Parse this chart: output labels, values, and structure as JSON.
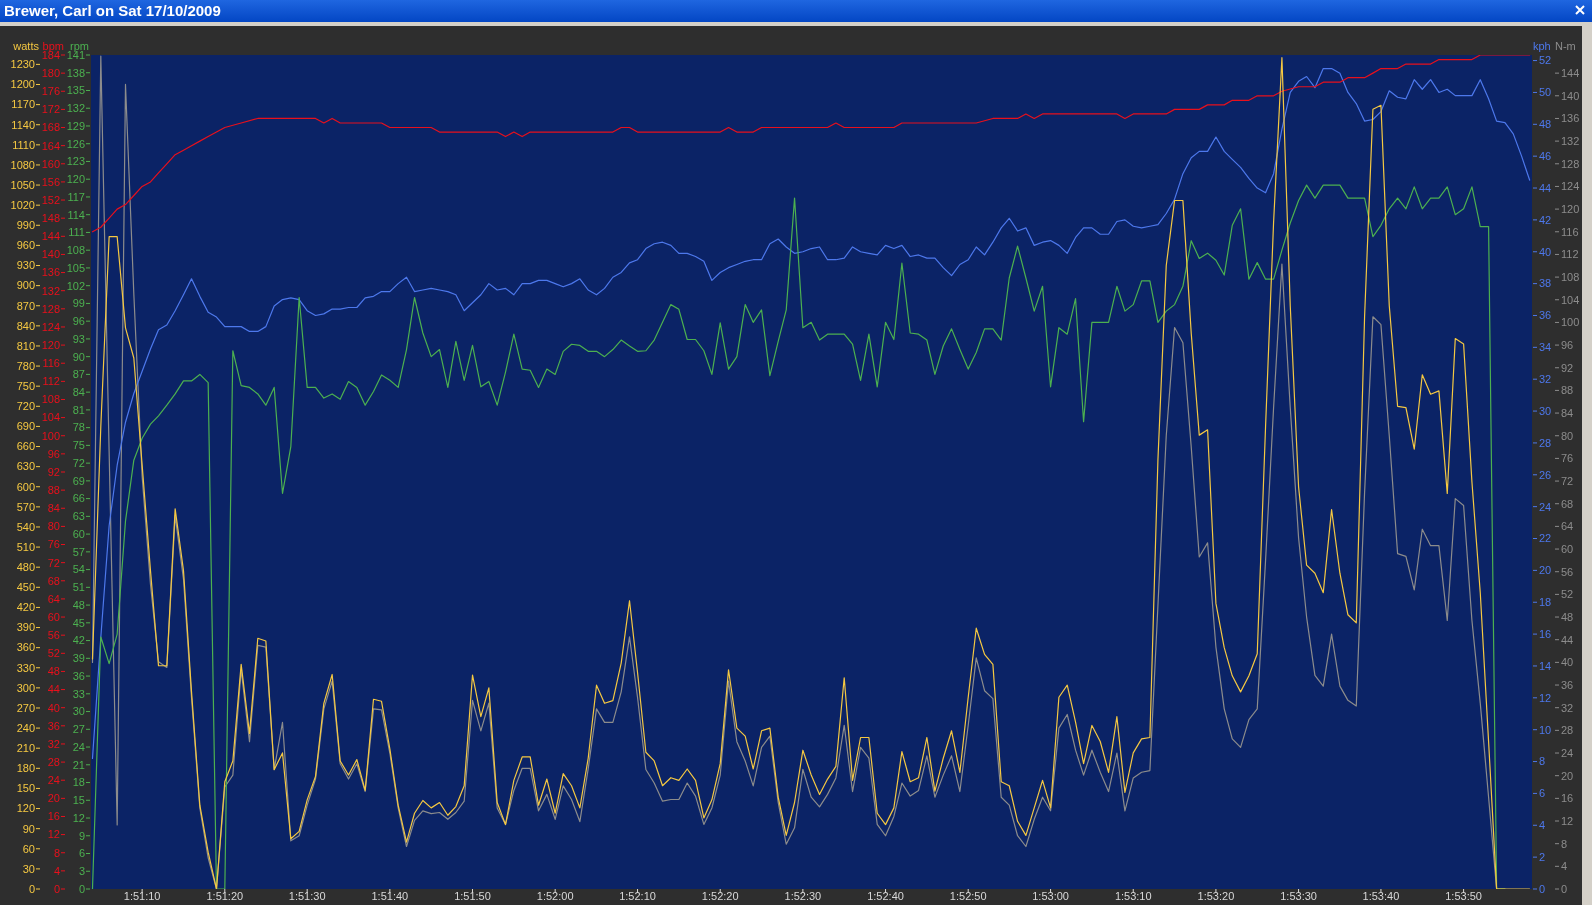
{
  "chart_data": [
    {
      "type": "line",
      "title": "Brewer, Carl on Sat 17/10/2009",
      "ylabel": "watts",
      "y2label": "bpm",
      "y3label": "rpm",
      "xlim": [
        1.85106,
        1.89952
      ],
      "xticks": [
        {
          "value": 1.85278,
          "label": "1:51:10"
        },
        {
          "value": 1.85556,
          "label": "1:51:20"
        },
        {
          "value": 1.85833,
          "label": "1:51:30"
        },
        {
          "value": 1.86111,
          "label": "1:51:40"
        },
        {
          "value": 1.86389,
          "label": "1:51:50"
        },
        {
          "value": 1.86667,
          "label": "1:52:00"
        },
        {
          "value": 1.86944,
          "label": "1:52:10"
        },
        {
          "value": 1.87222,
          "label": "1:52:20"
        },
        {
          "value": 1.875,
          "label": "1:52:30"
        },
        {
          "value": 1.87778,
          "label": "1:52:40"
        },
        {
          "value": 1.88056,
          "label": "1:52:50"
        },
        {
          "value": 1.88333,
          "label": "1:53:00"
        },
        {
          "value": 1.88611,
          "label": "1:53:10"
        },
        {
          "value": 1.88889,
          "label": "1:53:20"
        },
        {
          "value": 1.89167,
          "label": "1:53:30"
        },
        {
          "value": 1.89444,
          "label": "1:53:40"
        },
        {
          "value": 1.89722,
          "label": "1:53:50"
        }
      ],
      "ylim": [
        0,
        1244
      ],
      "yticks": [
        0,
        30,
        60,
        90,
        120,
        150,
        180,
        210,
        240,
        270,
        300,
        330,
        360,
        390,
        420,
        450,
        480,
        510,
        540,
        570,
        600,
        630,
        660,
        690,
        720,
        750,
        780,
        810,
        840,
        870,
        900,
        930,
        960,
        990,
        1020,
        1050,
        1080,
        1110,
        1140,
        1170,
        1200,
        1230
      ],
      "y2lim": [
        0,
        184
      ],
      "y2ticks": [
        0,
        4,
        8,
        12,
        16,
        20,
        24,
        28,
        32,
        36,
        40,
        44,
        48,
        52,
        56,
        60,
        64,
        68,
        72,
        76,
        80,
        84,
        88,
        92,
        96,
        100,
        104,
        108,
        112,
        116,
        120,
        124,
        128,
        132,
        136,
        140,
        144,
        148,
        152,
        156,
        160,
        164,
        168,
        172,
        176,
        180,
        184
      ],
      "y3lim": [
        0,
        141
      ],
      "y3ticks": [
        0,
        3,
        6,
        9,
        12,
        15,
        18,
        21,
        24,
        27,
        30,
        33,
        36,
        39,
        42,
        45,
        48,
        51,
        54,
        57,
        60,
        63,
        66,
        69,
        72,
        75,
        78,
        81,
        84,
        87,
        90,
        93,
        96,
        99,
        102,
        105,
        108,
        111,
        114,
        117,
        120,
        123,
        126,
        129,
        132,
        135,
        138,
        141
      ],
      "x": [
        1.85111,
        1.85139,
        1.85167,
        1.85194,
        1.85222,
        1.8525,
        1.85278,
        1.85306,
        1.85333,
        1.85361,
        1.85389,
        1.85417,
        1.85444,
        1.85472,
        1.855,
        1.85528,
        1.85556,
        1.85583,
        1.85611,
        1.85639,
        1.85667,
        1.85694,
        1.85722,
        1.8575,
        1.85778,
        1.85806,
        1.85833,
        1.85861,
        1.85889,
        1.85917,
        1.85944,
        1.85972,
        1.86,
        1.86028,
        1.86056,
        1.86083,
        1.86111,
        1.86139,
        1.86167,
        1.86194,
        1.86222,
        1.8625,
        1.86278,
        1.86306,
        1.86333,
        1.86361,
        1.86389,
        1.86417,
        1.86444,
        1.86472,
        1.865,
        1.86528,
        1.86556,
        1.86583,
        1.86611,
        1.86639,
        1.86667,
        1.86694,
        1.86722,
        1.8675,
        1.86778,
        1.86806,
        1.86833,
        1.86861,
        1.86889,
        1.86917,
        1.86944,
        1.86972,
        1.87,
        1.87028,
        1.87056,
        1.87083,
        1.87111,
        1.87139,
        1.87167,
        1.87194,
        1.87222,
        1.8725,
        1.87278,
        1.87306,
        1.87333,
        1.87361,
        1.87389,
        1.87417,
        1.87444,
        1.87472,
        1.875,
        1.87528,
        1.87556,
        1.87583,
        1.87611,
        1.87639,
        1.87667,
        1.87694,
        1.87722,
        1.8775,
        1.87778,
        1.87806,
        1.87833,
        1.87861,
        1.87889,
        1.87917,
        1.87944,
        1.87972,
        1.88,
        1.88028,
        1.88056,
        1.88083,
        1.88111,
        1.88139,
        1.88167,
        1.88194,
        1.88222,
        1.8825,
        1.88278,
        1.88306,
        1.88333,
        1.88361,
        1.88389,
        1.88417,
        1.88444,
        1.88472,
        1.885,
        1.88528,
        1.88556,
        1.88583,
        1.88611,
        1.88639,
        1.88667,
        1.88694,
        1.88722,
        1.8875,
        1.88778,
        1.88806,
        1.88833,
        1.88861,
        1.88889,
        1.88917,
        1.88944,
        1.88972,
        1.89,
        1.89028,
        1.89056,
        1.89083,
        1.89111,
        1.89139,
        1.89167,
        1.89194,
        1.89222,
        1.8925,
        1.89278,
        1.89306,
        1.89333,
        1.89361,
        1.89389,
        1.89417,
        1.89444,
        1.89472,
        1.895,
        1.89528,
        1.89556,
        1.89583,
        1.89611,
        1.89639,
        1.89667,
        1.89694,
        1.89722,
        1.8975,
        1.89778,
        1.89806,
        1.89833,
        1.89861,
        1.89889,
        1.89917,
        1.89944
      ],
      "series": [
        {
          "color": "#4cb050",
          "axis": "y3",
          "values": [
            0,
            42.6,
            38.1,
            43.1,
            62.2,
            72.5,
            76.2,
            78.6,
            80,
            81.8,
            83.7,
            85.9,
            85.9,
            87,
            85.6,
            0,
            0,
            91,
            85.1,
            84.8,
            83.7,
            81.8,
            84.8,
            66.9,
            74.8,
            100,
            84.8,
            84.8,
            83,
            83.7,
            82.8,
            85.8,
            84.8,
            81.8,
            84.1,
            86.9,
            86,
            84.8,
            91.2,
            100,
            94,
            90,
            91.2,
            84.8,
            92.6,
            86,
            91.9,
            84.9,
            85.8,
            81.8,
            87.4,
            93.8,
            87.9,
            87.7,
            84.8,
            87.9,
            87,
            90.9,
            92.1,
            91.9,
            90.9,
            90.9,
            90,
            91.2,
            92.8,
            91.8,
            90.9,
            91,
            92.8,
            95.8,
            98.8,
            98,
            92.9,
            92.9,
            91,
            87,
            95.7,
            87.9,
            90,
            98.8,
            95.8,
            97.9,
            86.8,
            92.6,
            97.9,
            116.8,
            94.9,
            95.8,
            92.8,
            93.8,
            93.8,
            93.8,
            92.1,
            86,
            93.8,
            84.9,
            95.8,
            92.9,
            105.8,
            94,
            93.8,
            92.8,
            87,
            91.8,
            94.7,
            91.2,
            87.9,
            90.7,
            94.7,
            94.7,
            92.8,
            103.3,
            108.7,
            103.3,
            97.7,
            101.9,
            84.9,
            94.9,
            93.8,
            99.8,
            79,
            95.8,
            95.8,
            95.8,
            101.9,
            97.7,
            98.8,
            102.8,
            102.8,
            95.8,
            97.7,
            98.8,
            101.9,
            109.6,
            106.6,
            107.5,
            106.3,
            103.8,
            112.2,
            115,
            103.1,
            105.9,
            103.1,
            103.1,
            108,
            112.6,
            116.4,
            119,
            116.8,
            119,
            119,
            119,
            116.8,
            116.8,
            116.8,
            110.3,
            112.2,
            115,
            116.8,
            115,
            118.7,
            115,
            116.8,
            116.8,
            118.7,
            114,
            115,
            118.7,
            112,
            112,
            0,
            0,
            null,
            null,
            null
          ]
        },
        {
          "color": "#e8101c",
          "axis": "y2",
          "x": [
            1.85111,
            1.85139,
            1.85167,
            1.85194,
            1.85222,
            1.8525,
            1.85278,
            1.85306,
            1.85333,
            1.85361,
            1.85389,
            1.85417,
            1.85444,
            1.85472,
            1.855,
            1.85528,
            1.85556,
            1.85611,
            1.85667,
            1.85861,
            1.85889,
            1.85917,
            1.85944,
            1.86083,
            1.86111,
            1.8625,
            1.86278,
            1.86472,
            1.865,
            1.86528,
            1.86556,
            1.86583,
            1.86861,
            1.86889,
            1.86917,
            1.86944,
            1.87222,
            1.8725,
            1.87278,
            1.87333,
            1.87361,
            1.87583,
            1.87611,
            1.87639,
            1.87806,
            1.87833,
            1.88083,
            1.88139,
            1.88222,
            1.8825,
            1.88278,
            1.88306,
            1.88556,
            1.88583,
            1.88611,
            1.88722,
            1.8875,
            1.88833,
            1.88861,
            1.88917,
            1.88944,
            1.89,
            1.89028,
            1.89083,
            1.89111,
            1.89167,
            1.89222,
            1.8925,
            1.89306,
            1.89333,
            1.89389,
            1.89417,
            1.89444,
            1.895,
            1.89528,
            1.89611,
            1.89639,
            1.8975,
            1.89778,
            1.89944
          ],
          "values": [
            145,
            146,
            148,
            150,
            151,
            153,
            155,
            156,
            158,
            160,
            162,
            163,
            164,
            165,
            166,
            167,
            168,
            169,
            170,
            170,
            169,
            170,
            169,
            169,
            168,
            168,
            167,
            167,
            166,
            167,
            166,
            167,
            167,
            168,
            168,
            167,
            167,
            168,
            167,
            167,
            168,
            168,
            169,
            168,
            168,
            169,
            169,
            170,
            170,
            171,
            170,
            171,
            171,
            170,
            171,
            171,
            172,
            172,
            173,
            173,
            174,
            174,
            175,
            175,
            176,
            177,
            177,
            178,
            178,
            179,
            179,
            180,
            181,
            181,
            182,
            182,
            183,
            183,
            184,
            184
          ]
        },
        {
          "color": "#f5c842",
          "values": [
            343,
            690,
            973,
            973,
            837,
            792,
            632,
            475,
            333,
            333,
            567,
            475,
            294,
            125,
            55,
            0,
            160,
            191,
            335,
            232,
            374,
            370,
            178,
            203,
            75,
            86,
            133,
            168,
            277,
            320,
            191,
            170,
            193,
            147,
            283,
            280,
            209,
            125,
            70,
            113,
            132,
            121,
            129,
            110,
            123,
            154,
            319,
            257,
            300,
            129,
            96,
            162,
            197,
            197,
            125,
            164,
            113,
            172,
            154,
            121,
            195,
            304,
            277,
            281,
            337,
            430,
            323,
            204,
            191,
            154,
            166,
            162,
            179,
            162,
            106,
            133,
            187,
            327,
            240,
            228,
            179,
            236,
            240,
            137,
            80,
            129,
            207,
            170,
            141,
            164,
            183,
            315,
            162,
            226,
            226,
            113,
            96,
            121,
            205,
            160,
            166,
            226,
            146,
            195,
            236,
            174,
            286,
            389,
            350,
            335,
            160,
            154,
            101,
            80,
            121,
            162,
            121,
            286,
            304,
            249,
            187,
            244,
            220,
            174,
            257,
            144,
            203,
            224,
            226,
            640,
            930,
            1027,
            1027,
            829,
            677,
            685,
            426,
            360,
            318,
            294,
            318,
            351,
            690,
            995,
            1240,
            870,
            600,
            483,
            471,
            442,
            566,
            471,
            409,
            397,
            854,
            1163,
            1169,
            870,
            720,
            718,
            656,
            767,
            738,
            743,
            590,
            821,
            813,
            607,
            442,
            220,
            0,
            0,
            0,
            0,
            0
          ]
        }
      ]
    },
    {
      "type": "line",
      "ylabel": "kph",
      "y2label": "N-m",
      "tick_labels": "y",
      "xlim": [
        1.85106,
        1.89952
      ],
      "ylim": [
        0,
        52.35
      ],
      "yticks": [
        0,
        2,
        4,
        6,
        8,
        10,
        12,
        14,
        16,
        18,
        20,
        22,
        24,
        26,
        28,
        30,
        32,
        34,
        36,
        38,
        40,
        42,
        44,
        46,
        48,
        50,
        52
      ],
      "y2lim": [
        0,
        147.2
      ],
      "y2ticks": [
        0,
        4,
        8,
        12,
        16,
        20,
        24,
        28,
        32,
        36,
        40,
        44,
        48,
        52,
        56,
        60,
        64,
        68,
        72,
        76,
        80,
        84,
        88,
        92,
        96,
        100,
        104,
        108,
        112,
        116,
        120,
        124,
        128,
        132,
        136,
        140,
        144
      ],
      "x": [
        1.85111,
        1.85139,
        1.85167,
        1.85194,
        1.85222,
        1.8525,
        1.85278,
        1.85306,
        1.85333,
        1.85361,
        1.85389,
        1.85417,
        1.85444,
        1.85472,
        1.855,
        1.85528,
        1.85556,
        1.85583,
        1.85611,
        1.85639,
        1.85667,
        1.85694,
        1.85722,
        1.8575,
        1.85778,
        1.85806,
        1.85833,
        1.85861,
        1.85889,
        1.85917,
        1.85944,
        1.85972,
        1.86,
        1.86028,
        1.86056,
        1.86083,
        1.86111,
        1.86139,
        1.86167,
        1.86194,
        1.86222,
        1.8625,
        1.86278,
        1.86306,
        1.86333,
        1.86361,
        1.86389,
        1.86417,
        1.86444,
        1.86472,
        1.865,
        1.86528,
        1.86556,
        1.86583,
        1.86611,
        1.86639,
        1.86667,
        1.86694,
        1.86722,
        1.8675,
        1.86778,
        1.86806,
        1.86833,
        1.86861,
        1.86889,
        1.86917,
        1.86944,
        1.86972,
        1.87,
        1.87028,
        1.87056,
        1.87083,
        1.87111,
        1.87139,
        1.87167,
        1.87194,
        1.87222,
        1.8725,
        1.87278,
        1.87306,
        1.87333,
        1.87361,
        1.87389,
        1.87417,
        1.87444,
        1.87472,
        1.875,
        1.87528,
        1.87556,
        1.87583,
        1.87611,
        1.87639,
        1.87667,
        1.87694,
        1.87722,
        1.8775,
        1.87778,
        1.87806,
        1.87833,
        1.87861,
        1.87889,
        1.87917,
        1.87944,
        1.87972,
        1.88,
        1.88028,
        1.88056,
        1.88083,
        1.88111,
        1.88139,
        1.88167,
        1.88194,
        1.88222,
        1.8825,
        1.88278,
        1.88306,
        1.88333,
        1.88361,
        1.88389,
        1.88417,
        1.88444,
        1.88472,
        1.885,
        1.88528,
        1.88556,
        1.88583,
        1.88611,
        1.88639,
        1.88667,
        1.88694,
        1.88722,
        1.8875,
        1.88778,
        1.88806,
        1.88833,
        1.88861,
        1.88889,
        1.88917,
        1.88944,
        1.88972,
        1.89,
        1.89028,
        1.89056,
        1.89083,
        1.89111,
        1.89139,
        1.89167,
        1.89194,
        1.89222,
        1.8925,
        1.89278,
        1.89306,
        1.89333,
        1.89361,
        1.89389,
        1.89417,
        1.89444,
        1.89472,
        1.895,
        1.89528,
        1.89556,
        1.89583,
        1.89611,
        1.89639,
        1.89667,
        1.89694,
        1.89722,
        1.8975,
        1.89778,
        1.89806,
        1.89833,
        1.89861,
        1.89889,
        1.89917,
        1.89944
      ],
      "series": [
        {
          "color": "#8c8c8c",
          "axis": "y2",
          "values": [
            40,
            147,
            77,
            11.3,
            142,
            105,
            72.8,
            53.8,
            40.1,
            39.1,
            65.9,
            54.7,
            33.8,
            14.3,
            5.5,
            0,
            18,
            20.1,
            38.7,
            26,
            43,
            42.7,
            21.1,
            29.4,
            8.5,
            9.4,
            14.8,
            19.4,
            31.8,
            36.7,
            22.1,
            19.4,
            22.1,
            17.2,
            31.8,
            31.6,
            24,
            14.3,
            7.5,
            12.1,
            13.8,
            13.3,
            13.5,
            12.3,
            13.5,
            15.5,
            33.3,
            27.9,
            32.8,
            14.3,
            11.4,
            17.4,
            21.3,
            21.3,
            13.8,
            16.7,
            12.3,
            18.2,
            15.8,
            11.9,
            21.2,
            31.8,
            29.4,
            29.4,
            34.8,
            44.5,
            33.8,
            21.1,
            18.7,
            15.5,
            15.8,
            15.8,
            18.7,
            16.4,
            11.4,
            14.3,
            20.1,
            36.7,
            26,
            22.6,
            18.2,
            25,
            27,
            15.3,
            7.9,
            10.8,
            21.1,
            16.2,
            14.5,
            16.7,
            19.6,
            28.9,
            17.2,
            25,
            23.1,
            11.4,
            9.4,
            12.8,
            18.7,
            16.4,
            17.4,
            23.5,
            16.2,
            20.1,
            23.5,
            17.2,
            28.9,
            40.8,
            35,
            33.6,
            16.2,
            14.8,
            9.4,
            7.5,
            12.3,
            16.2,
            13.8,
            28.4,
            30.8,
            24.5,
            20.1,
            24.5,
            20.6,
            17.2,
            24,
            13.8,
            19.6,
            20.6,
            20.9,
            50,
            80,
            99.1,
            96.4,
            78,
            58.6,
            61.1,
            42.7,
            31.8,
            26.5,
            25,
            29.9,
            31.8,
            58,
            85,
            110.3,
            85,
            62,
            48,
            37.7,
            35.8,
            45,
            35.8,
            33.3,
            32.3,
            70,
            101,
            99.6,
            80,
            59.2,
            58.7,
            52.8,
            63.5,
            60.6,
            60.6,
            47.4,
            68.9,
            67.7,
            47.4,
            32.8,
            16.2,
            0,
            0,
            null,
            null,
            null
          ]
        },
        {
          "color": "#4d78ec",
          "values": [
            8.2,
            15.8,
            22.8,
            26.6,
            29.3,
            31.1,
            32.5,
            33.9,
            35.1,
            35.4,
            36.3,
            37.3,
            38.3,
            37.2,
            36.2,
            35.9,
            35.3,
            35.3,
            35.3,
            35,
            35,
            35.3,
            36.6,
            37,
            37.1,
            37,
            36.3,
            36,
            36.1,
            36.4,
            36.4,
            36.5,
            36.5,
            37.1,
            37.2,
            37.5,
            37.5,
            38,
            38.4,
            37.5,
            37.6,
            37.7,
            37.6,
            37.5,
            37.3,
            36.3,
            36.8,
            37.3,
            38,
            37.6,
            37.7,
            37.3,
            38,
            38,
            38.2,
            38.2,
            38,
            37.8,
            38,
            38.3,
            37.6,
            37.3,
            37.7,
            38.4,
            38.7,
            39.3,
            39.5,
            40.2,
            40.5,
            40.6,
            40.4,
            39.9,
            39.9,
            39.7,
            39.4,
            38.2,
            38.7,
            39,
            39.2,
            39.4,
            39.5,
            39.5,
            40.5,
            40.8,
            40.3,
            39.9,
            40,
            40.2,
            40.3,
            39.5,
            39.5,
            39.6,
            40.3,
            40,
            39.9,
            39.8,
            40.4,
            40.2,
            40.4,
            39.7,
            39.8,
            39.6,
            39.6,
            39,
            38.5,
            39.2,
            39.5,
            40.3,
            39.8,
            40.6,
            41.5,
            42.1,
            41.3,
            41.5,
            40.4,
            40.6,
            40.7,
            40.4,
            39.9,
            40.9,
            41.5,
            41.5,
            41.1,
            41.1,
            41.9,
            42,
            41.6,
            41.5,
            41.6,
            41.7,
            42.4,
            43.3,
            44.9,
            45.9,
            46.3,
            46.3,
            47.2,
            46.3,
            45.8,
            45.3,
            44.6,
            44,
            43.7,
            44.9,
            47.7,
            50,
            50.7,
            51,
            50.3,
            51.5,
            51.5,
            51.2,
            50,
            49.3,
            48.2,
            48.3,
            48.8,
            50.1,
            49.7,
            49.6,
            50.8,
            50.2,
            50.8,
            50,
            50.2,
            49.8,
            49.8,
            49.8,
            50.8,
            49.6,
            48.2,
            48.1,
            47.4,
            46,
            44.5
          ]
        }
      ]
    }
  ]
}
